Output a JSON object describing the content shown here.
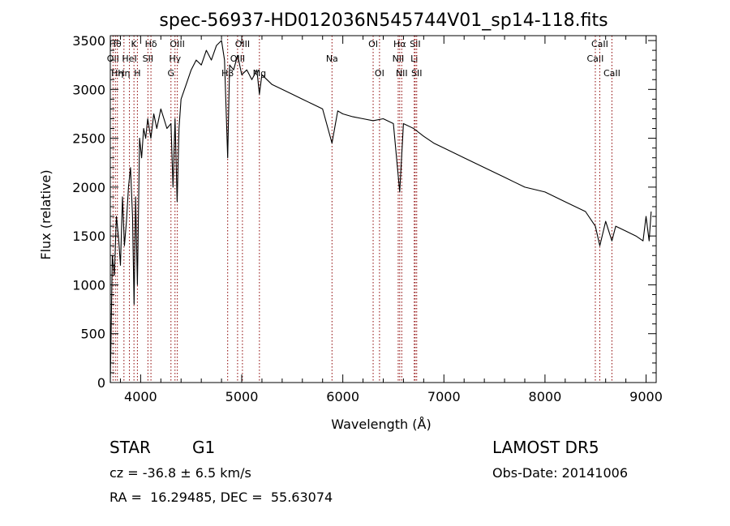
{
  "chart_data": {
    "type": "line",
    "title": "spec-56937-HD012036N545744V01_sp14-118.fits",
    "xlabel": "Wavelength (Å)",
    "ylabel": "Flux (relative)",
    "xlim": [
      3700,
      9100
    ],
    "ylim": [
      0,
      3550
    ],
    "xticks": [
      4000,
      5000,
      6000,
      7000,
      8000,
      9000
    ],
    "yticks": [
      0,
      500,
      1000,
      1500,
      2000,
      2500,
      3000,
      3500
    ],
    "grid": false,
    "line_color": "#000000",
    "marker_color": "#8b0000",
    "series": [
      {
        "x": [
          3700,
          3720,
          3740,
          3760,
          3780,
          3800,
          3820,
          3840,
          3860,
          3880,
          3900,
          3920,
          3935,
          3950,
          3968,
          3990,
          4010,
          4030,
          4050,
          4070,
          4101,
          4130,
          4160,
          4200,
          4230,
          4260,
          4300,
          4320,
          4340,
          4361,
          4380,
          4400,
          4450,
          4500,
          4550,
          4600,
          4650,
          4700,
          4750,
          4800,
          4830,
          4861,
          4880,
          4920,
          4960,
          5000,
          5050,
          5100,
          5150,
          5175,
          5200,
          5250,
          5300,
          5400,
          5500,
          5600,
          5700,
          5800,
          5893,
          5950,
          6000,
          6100,
          6200,
          6300,
          6400,
          6500,
          6563,
          6600,
          6700,
          6800,
          6900,
          7000,
          7200,
          7400,
          7600,
          7800,
          8000,
          8200,
          8400,
          8498,
          8542,
          8600,
          8662,
          8700,
          8800,
          8900,
          8970,
          9000,
          9030,
          9050
        ],
        "y": [
          0,
          1300,
          1100,
          1700,
          1500,
          1200,
          1900,
          1400,
          1650,
          2000,
          2200,
          1700,
          800,
          1900,
          1000,
          2500,
          2300,
          2600,
          2500,
          2700,
          2500,
          2750,
          2600,
          2800,
          2700,
          2600,
          2650,
          2000,
          2700,
          1850,
          2600,
          2900,
          3050,
          3200,
          3300,
          3250,
          3400,
          3300,
          3450,
          3500,
          3300,
          2300,
          3250,
          3200,
          3350,
          3150,
          3200,
          3100,
          3200,
          2950,
          3150,
          3100,
          3050,
          3000,
          2950,
          2900,
          2850,
          2800,
          2450,
          2780,
          2750,
          2720,
          2700,
          2680,
          2700,
          2650,
          1950,
          2650,
          2600,
          2520,
          2450,
          2400,
          2300,
          2200,
          2100,
          2000,
          1950,
          1850,
          1750,
          1600,
          1400,
          1650,
          1450,
          1600,
          1550,
          1500,
          1450,
          1700,
          1450,
          1750
        ]
      }
    ],
    "lines": [
      {
        "x": 3727,
        "label": "OII",
        "row": 2
      },
      {
        "x": 3750,
        "label": "Hθ",
        "row": 1
      },
      {
        "x": 3770,
        "label": "Hη",
        "row": 3
      },
      {
        "x": 3835,
        "label": "Hη",
        "row": 3
      },
      {
        "x": 3889,
        "label": "HeI",
        "row": 2
      },
      {
        "x": 3934,
        "label": "K",
        "row": 1
      },
      {
        "x": 3968,
        "label": "H",
        "row": 3
      },
      {
        "x": 4072,
        "label": "SII",
        "row": 2
      },
      {
        "x": 4102,
        "label": "Hδ",
        "row": 1
      },
      {
        "x": 4300,
        "label": "G",
        "row": 3
      },
      {
        "x": 4340,
        "label": "Hγ",
        "row": 2
      },
      {
        "x": 4363,
        "label": "OIII",
        "row": 1
      },
      {
        "x": 4861,
        "label": "Hβ",
        "row": 3
      },
      {
        "x": 4959,
        "label": "OIII",
        "row": 2
      },
      {
        "x": 5007,
        "label": "OIII",
        "row": 1
      },
      {
        "x": 5175,
        "label": "Mg",
        "row": 3
      },
      {
        "x": 5893,
        "label": "Na",
        "row": 2
      },
      {
        "x": 6300,
        "label": "OI",
        "row": 1
      },
      {
        "x": 6363,
        "label": "OI",
        "row": 3
      },
      {
        "x": 6548,
        "label": "NII",
        "row": 2
      },
      {
        "x": 6563,
        "label": "Hα",
        "row": 1
      },
      {
        "x": 6583,
        "label": "NII",
        "row": 3
      },
      {
        "x": 6707,
        "label": "Li",
        "row": 2
      },
      {
        "x": 6716,
        "label": "SII",
        "row": 1
      },
      {
        "x": 6731,
        "label": "SII",
        "row": 3
      },
      {
        "x": 8498,
        "label": "CaII",
        "row": 2
      },
      {
        "x": 8542,
        "label": "CaII",
        "row": 1
      },
      {
        "x": 8662,
        "label": "CaII",
        "row": 3
      }
    ]
  },
  "info": {
    "class_label": "STAR",
    "subclass": "G1",
    "survey": "LAMOST DR5",
    "redshift": "cz = -36.8 ± 6.5 km/s",
    "obs_date": "Obs-Date: 20141006",
    "coords": "RA =  16.29485, DEC =  55.63074"
  }
}
